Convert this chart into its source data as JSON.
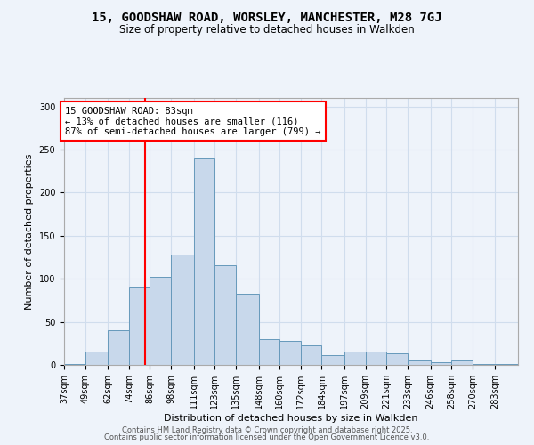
{
  "title": "15, GOODSHAW ROAD, WORSLEY, MANCHESTER, M28 7GJ",
  "subtitle": "Size of property relative to detached houses in Walkden",
  "xlabel": "Distribution of detached houses by size in Walkden",
  "ylabel": "Number of detached properties",
  "bar_color": "#c8d8eb",
  "bar_edge_color": "#6699bb",
  "grid_color": "#d0dded",
  "background_color": "#eef3fa",
  "bin_edges": [
    37,
    49,
    62,
    74,
    86,
    98,
    111,
    123,
    135,
    148,
    160,
    172,
    184,
    197,
    209,
    221,
    233,
    246,
    258,
    270,
    283
  ],
  "bin_labels": [
    "37sqm",
    "49sqm",
    "62sqm",
    "74sqm",
    "86sqm",
    "98sqm",
    "111sqm",
    "123sqm",
    "135sqm",
    "148sqm",
    "160sqm",
    "172sqm",
    "184sqm",
    "197sqm",
    "209sqm",
    "221sqm",
    "233sqm",
    "246sqm",
    "258sqm",
    "270sqm",
    "283sqm"
  ],
  "bar_heights": [
    1,
    15,
    40,
    90,
    102,
    128,
    240,
    116,
    83,
    30,
    28,
    23,
    11,
    15,
    15,
    13,
    5,
    3,
    5,
    1,
    1
  ],
  "red_line_x": 83,
  "annotation_text": "15 GOODSHAW ROAD: 83sqm\n← 13% of detached houses are smaller (116)\n87% of semi-detached houses are larger (799) →",
  "ylim": [
    0,
    310
  ],
  "yticks": [
    0,
    50,
    100,
    150,
    200,
    250,
    300
  ],
  "footer_line1": "Contains HM Land Registry data © Crown copyright and database right 2025.",
  "footer_line2": "Contains public sector information licensed under the Open Government Licence v3.0."
}
